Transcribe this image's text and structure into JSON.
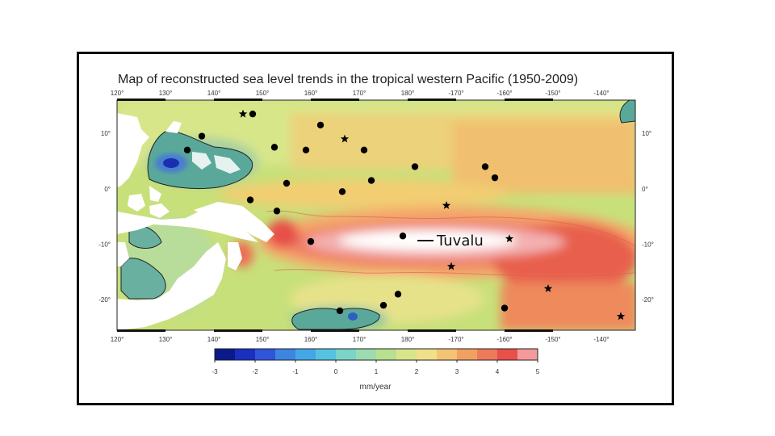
{
  "map": {
    "title": "Map of reconstructed sea level trends in the tropical western Pacific (1950-2009)",
    "top_lon_ticks": [
      "120°",
      "130°",
      "140°",
      "150°",
      "160°",
      "170°",
      "180°",
      "-170°",
      "-160°",
      "-150°",
      "-140°"
    ],
    "bottom_lon_ticks": [
      "120°",
      "130°",
      "140°",
      "150°",
      "160°",
      "170°",
      "180°",
      "-170°",
      "-160°",
      "-150°",
      "-140°"
    ],
    "lat_ticks_left": [
      "10°",
      "0°",
      "-10°",
      "-20°"
    ],
    "lat_ticks_right": [
      "10°",
      "0°",
      "-10°",
      "-20°"
    ],
    "label_tuvalu": "Tuvalu",
    "colorbar": {
      "ticks": [
        "-3",
        "-2",
        "-1",
        "0",
        "1",
        "2",
        "3",
        "4",
        "5"
      ],
      "units": "mm/year",
      "range": [
        -3,
        5
      ]
    },
    "colors": {
      "deep_blue": "#1a2fb0",
      "teal": "#5aa89a",
      "green": "#a8d48a",
      "yellow": "#f0e08a",
      "orange": "#f4a86a",
      "red": "#e8504a",
      "white": "#ffffff"
    },
    "stations_circle": [
      [
        148,
        13.5
      ],
      [
        137.5,
        9.5
      ],
      [
        134.5,
        7
      ],
      [
        152.5,
        7.5
      ],
      [
        159,
        7
      ],
      [
        162,
        11.5
      ],
      [
        171,
        7
      ],
      [
        181.5,
        4
      ],
      [
        196,
        4
      ],
      [
        198,
        2
      ],
      [
        155,
        1
      ],
      [
        172.5,
        1.5
      ],
      [
        166.5,
        -0.5
      ],
      [
        147.5,
        -2
      ],
      [
        153,
        -4
      ],
      [
        160,
        -9.5
      ],
      [
        179,
        -8.5
      ],
      [
        178,
        -19
      ],
      [
        166,
        -22
      ],
      [
        175,
        -21
      ],
      [
        200,
        -21.5
      ]
    ],
    "stations_star": [
      [
        146,
        13.5
      ],
      [
        167,
        9
      ],
      [
        188,
        -3
      ],
      [
        189,
        -14
      ],
      [
        201,
        -9
      ],
      [
        209,
        -18
      ],
      [
        224,
        -23
      ]
    ]
  }
}
